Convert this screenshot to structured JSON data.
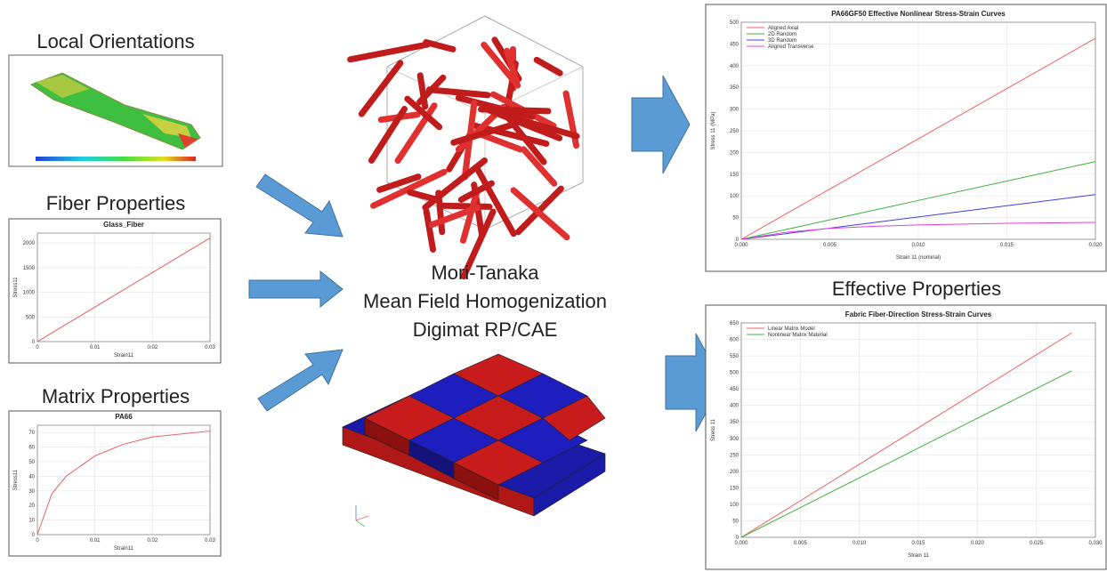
{
  "left_panels": [
    {
      "title": "Local Orientations"
    },
    {
      "title": "Fiber Properties"
    },
    {
      "title": "Matrix Properties"
    }
  ],
  "center_text": [
    "Mori-Tanaka",
    "Mean Field Homogenization",
    "Digimat RP/CAE"
  ],
  "right_title": "Effective Properties",
  "charts": [
    {
      "type": "line",
      "title": "Glass_Fiber",
      "xlabel": "Strain11",
      "ylabel": "Stress11",
      "x": [
        0,
        0.03
      ],
      "series": [
        {
          "name": null,
          "color": "#e06060",
          "values": [
            0,
            2100
          ]
        }
      ],
      "xlim": [
        0,
        0.03
      ],
      "xticks": [
        0,
        0.01,
        0.02,
        0.03
      ],
      "ylim": [
        0,
        2200
      ],
      "yticks": [
        0,
        500,
        1000,
        1500,
        2000
      ],
      "grid": true,
      "legend": false
    },
    {
      "type": "line",
      "title": "PA66",
      "xlabel": "Strain11",
      "ylabel": "Stress11",
      "x": [
        0,
        0.0025,
        0.005,
        0.01,
        0.015,
        0.02,
        0.03
      ],
      "series": [
        {
          "name": null,
          "color": "#e06060",
          "values": [
            0,
            28,
            40,
            54,
            62,
            67,
            71
          ]
        }
      ],
      "xlim": [
        0,
        0.03
      ],
      "xticks": [
        0,
        0.01,
        0.02,
        0.03
      ],
      "ylim": [
        0,
        75
      ],
      "yticks": [
        0,
        10,
        20,
        30,
        40,
        50,
        60,
        70
      ],
      "grid": true,
      "legend": false
    },
    {
      "type": "line",
      "title": "PA66GF50 Effective Nonlinear Stress-Strain Curves",
      "xlabel": "Strain 11 (nominal)",
      "ylabel": "Stress 11 (MPa)",
      "x": [
        0,
        0.0025,
        0.005,
        0.0075,
        0.01,
        0.015,
        0.02
      ],
      "series": [
        {
          "name": "Aligned Axial",
          "color": "#f06060",
          "values": [
            0,
            57.9,
            115.75,
            173.6,
            231.5,
            347.25,
            463
          ]
        },
        {
          "name": "2D Random",
          "color": "#40b040",
          "values": [
            0,
            22.4,
            44.75,
            67.1,
            89.5,
            134.25,
            179
          ]
        },
        {
          "name": "3D Random",
          "color": "#4040e0",
          "values": [
            0,
            12.9,
            25.75,
            38.6,
            51.5,
            77.25,
            103
          ]
        },
        {
          "name": "Aligned Transverse",
          "color": "#e040e0",
          "values": [
            0,
            16,
            25,
            30,
            33,
            37,
            39
          ]
        }
      ],
      "xlim": [
        0,
        0.02
      ],
      "xticks": [
        {
          "value": 0,
          "label": "0.000"
        },
        0.005,
        {
          "value": 0.01,
          "label": "0.010"
        },
        0.015,
        {
          "value": 0.02,
          "label": "0.020"
        }
      ],
      "ylim": [
        0,
        500
      ],
      "yticks": [
        0,
        50,
        100,
        150,
        200,
        250,
        300,
        350,
        400,
        450,
        500
      ],
      "grid": true,
      "legend": "upper left"
    },
    {
      "type": "line",
      "title": "Fabric Fiber-Direction Stress-Strain Curves",
      "xlabel": "Strain 11",
      "ylabel": "Stress 11",
      "x": [
        0,
        0.028
      ],
      "series": [
        {
          "name": "Linear Matrix Model",
          "color": "#f06060",
          "values": [
            0,
            620
          ]
        },
        {
          "name": "Nonlinear Matrix Material",
          "color": "#40b040",
          "values": [
            0,
            505
          ]
        }
      ],
      "xlim": [
        0,
        0.03
      ],
      "xticks": [
        {
          "value": 0,
          "label": "0.000"
        },
        0.005,
        {
          "value": 0.01,
          "label": "0.010"
        },
        0.015,
        {
          "value": 0.02,
          "label": "0.020"
        },
        0.025,
        {
          "value": 0.03,
          "label": "0.030"
        }
      ],
      "ylim": [
        0,
        650
      ],
      "yticks": [
        0,
        50,
        100,
        150,
        200,
        250,
        300,
        350,
        400,
        450,
        500,
        550,
        600,
        650
      ],
      "grid": true,
      "legend": "upper left"
    }
  ]
}
